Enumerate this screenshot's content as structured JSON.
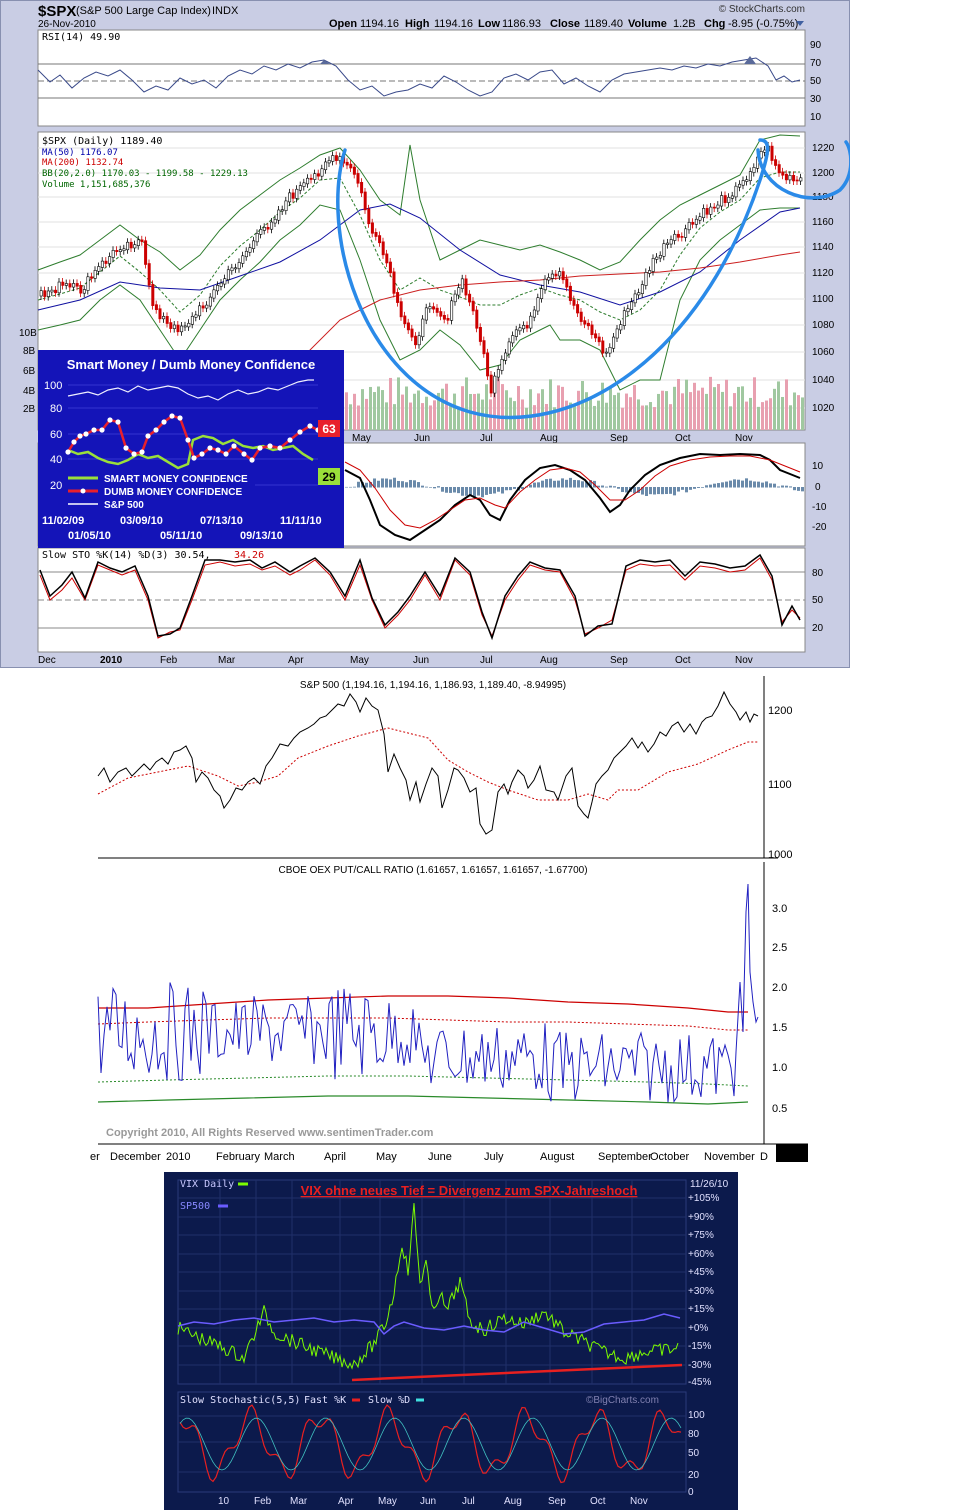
{
  "stockcharts": {
    "symbol": "$SPX",
    "name": "(S&P 500 Large Cap Index)",
    "exchange": "INDX",
    "date": "26-Nov-2010",
    "brand": "© StockCharts.com",
    "quote": {
      "open_label": "Open",
      "open": "1194.16",
      "high_label": "High",
      "high": "1194.16",
      "low_label": "Low",
      "low": "1186.93",
      "close_label": "Close",
      "close": "1189.40",
      "volume_label": "Volume",
      "volume": "1.2B",
      "chg_label": "Chg",
      "chg": "-8.95 (-0.75%)"
    },
    "rsi_label": "RSI(14) 49.90",
    "rsi_ticks": [
      "90",
      "70",
      "50",
      "30",
      "10"
    ],
    "legend": [
      {
        "text": "$SPX (Daily) 1189.40",
        "color": "#000000"
      },
      {
        "text": "MA(50) 1176.07",
        "color": "#0000aa"
      },
      {
        "text": "MA(200) 1132.74",
        "color": "#cc0000"
      },
      {
        "text": "BB(20,2.0) 1170.03 - 1199.58 - 1229.13",
        "color": "#006600"
      },
      {
        "text": "Volume 1,151,685,376",
        "color": "#006600"
      }
    ],
    "price_ticks": [
      "1220",
      "1200",
      "1180",
      "1160",
      "1140",
      "1120",
      "1100",
      "1080",
      "1060",
      "1040",
      "1020"
    ],
    "volume_ticks": [
      "10B",
      "8B",
      "6B",
      "4B",
      "2B"
    ],
    "macd_ticks": [
      "10",
      "0",
      "-10",
      "-20"
    ],
    "sto_label": "Slow STO %K(14) %D(3) 30.54,",
    "sto_d_value": "34.26",
    "sto_ticks": [
      "80",
      "50",
      "20"
    ],
    "months": [
      "Dec",
      "2010",
      "Feb",
      "Mar",
      "Apr",
      "May",
      "Jun",
      "Jul",
      "Aug",
      "Sep",
      "Oct",
      "Nov"
    ]
  },
  "smart_money": {
    "title": "Smart Money / Dumb Money Confidence",
    "y_ticks": [
      "100",
      "80",
      "60",
      "40",
      "20"
    ],
    "dumb_value": "63",
    "smart_value": "29",
    "legend": [
      "SMART MONEY CONFIDENCE",
      "DUMB MONEY CONFIDENCE",
      "S&P 500"
    ],
    "dates_top": [
      "11/02/09",
      "03/09/10",
      "07/13/10",
      "11/11/10"
    ],
    "dates_bottom": [
      "01/05/10",
      "05/11/10",
      "09/13/10"
    ]
  },
  "sentiment": {
    "spx_title": "S&P 500 (1,194.16, 1,194.16, 1,186.93, 1,189.40, -8.94995)",
    "spx_ticks": [
      "1200",
      "1100",
      "1000"
    ],
    "pc_title": "CBOE OEX PUT/CALL RATIO (1.61657, 1.61657, 1.61657, -1.67700)",
    "pc_ticks": [
      "3.0",
      "2.5",
      "2.0",
      "1.5",
      "1.0",
      "0.5"
    ],
    "copyright": "Copyright 2010, All Rights Reserved  www.sentimenTrader.com",
    "months": [
      "er",
      "December",
      "2010",
      "February",
      "March",
      "April",
      "May",
      "June",
      "July",
      "August",
      "September",
      "October",
      "November",
      "D"
    ]
  },
  "bigcharts": {
    "vix_label": "VIX Daily",
    "sp_label": "SP500",
    "annotation": "VIX ohne neues Tief = Divergenz zum SPX-Jahreshoch",
    "date": "11/26/10",
    "pct_ticks": [
      "+105%",
      "+90%",
      "+75%",
      "+60%",
      "+45%",
      "+30%",
      "+15%",
      "+0%",
      "-15%",
      "-30%",
      "-45%"
    ],
    "sto_title": "Slow Stochastic(5,5)",
    "fast_label": "Fast %K",
    "slow_label": "Slow %D",
    "brand": "©BigCharts.com",
    "sto_ticks": [
      "100",
      "80",
      "50",
      "20",
      "0"
    ],
    "months": [
      "10",
      "Feb",
      "Mar",
      "Apr",
      "May",
      "Jun",
      "Jul",
      "Aug",
      "Sep",
      "Oct",
      "Nov"
    ]
  },
  "colors": {
    "accent": "#1a73e8",
    "price_up": "#000000",
    "price_down": "#cc0000",
    "bb": "#006600",
    "ma50": "#0000aa",
    "ma200": "#cc0000",
    "vix": "#7cfc00",
    "sp": "#6a5cff"
  },
  "chart_data": [
    {
      "type": "line",
      "title": "$SPX (S&P 500 Large Cap Index)",
      "series": [
        {
          "name": "$SPX (Daily)",
          "values": [
            1110,
            1115,
            1105,
            1125,
            1145,
            1140,
            1095,
            1080,
            1110,
            1150,
            1175,
            1210,
            1195,
            1140,
            1085,
            1060,
            1110,
            1085,
            1130,
            1060,
            1040,
            1100,
            1125,
            1090,
            1055,
            1110,
            1140,
            1165,
            1185,
            1215,
            1195,
            1189.4
          ]
        }
      ],
      "ylim": [
        1010,
        1230
      ]
    },
    {
      "type": "line",
      "title": "Smart Money / Dumb Money Confidence",
      "series": [
        {
          "name": "SMART MONEY CONFIDENCE",
          "values": [
            48,
            45,
            42,
            35,
            50,
            55,
            50,
            45,
            52,
            35,
            29
          ]
        },
        {
          "name": "DUMB MONEY CONFIDENCE",
          "values": [
            45,
            60,
            70,
            45,
            68,
            72,
            50,
            45,
            52,
            60,
            63
          ]
        }
      ],
      "ylim": [
        20,
        100
      ]
    },
    {
      "type": "line",
      "title": "CBOE OEX PUT/CALL RATIO",
      "ylim": [
        0.3,
        3.3
      ]
    },
    {
      "type": "line",
      "title": "VIX Daily",
      "ylim": [
        -45,
        105
      ]
    }
  ]
}
